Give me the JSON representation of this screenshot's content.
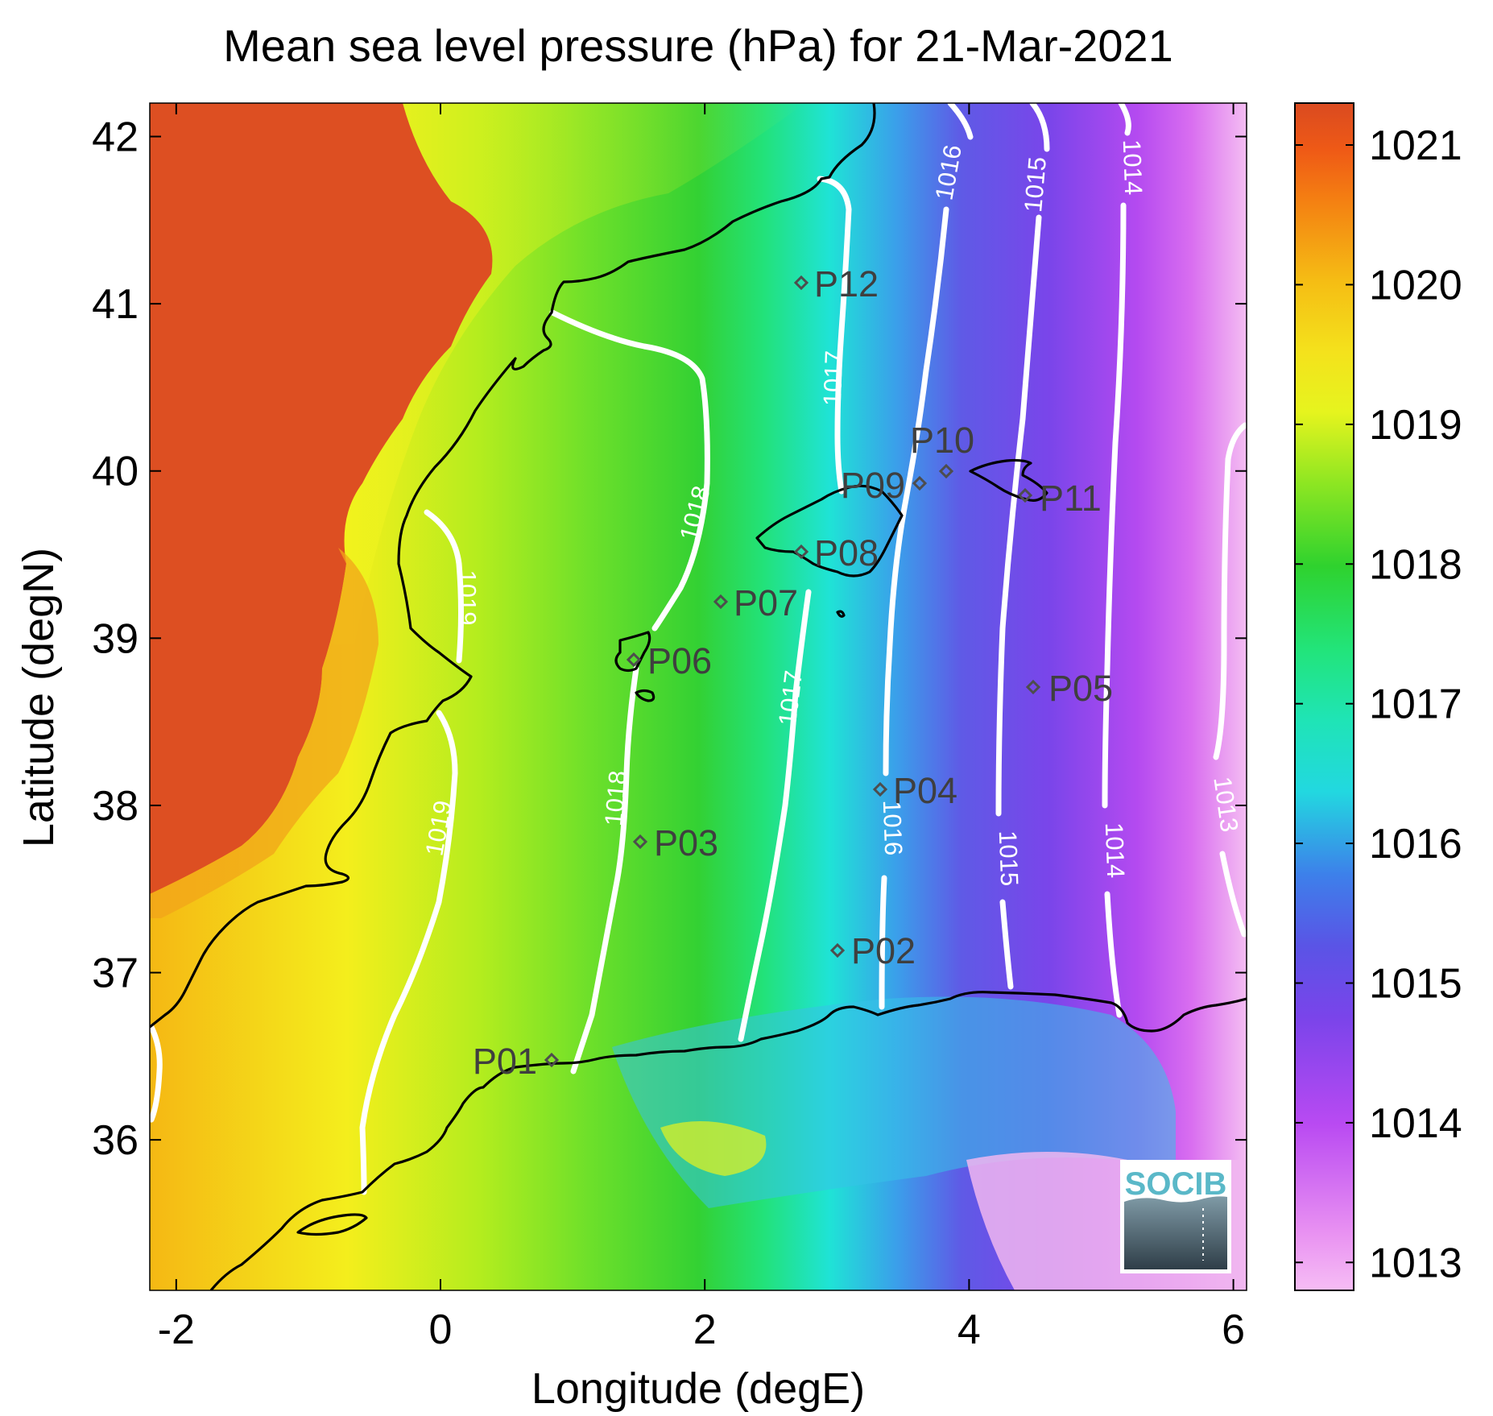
{
  "title": "Mean sea level pressure (hPa) for 21-Mar-2021",
  "xlabel": "Longitude (degE)",
  "ylabel": "Latitude (degN)",
  "xlim": [
    -2.2,
    6.1
  ],
  "ylim": [
    35.1,
    42.2
  ],
  "x_ticks": [
    "-2",
    "0",
    "2",
    "4",
    "6"
  ],
  "x_tick_values": [
    -2,
    0,
    2,
    4,
    6
  ],
  "y_ticks": [
    "36",
    "37",
    "38",
    "39",
    "40",
    "41",
    "42"
  ],
  "y_tick_values": [
    36,
    37,
    38,
    39,
    40,
    41,
    42
  ],
  "colorbar": {
    "range": [
      1012.8,
      1021.3
    ],
    "tick_values": [
      1013,
      1014,
      1015,
      1016,
      1017,
      1018,
      1019,
      1020,
      1021
    ],
    "tick_labels": [
      "1013",
      "1014",
      "1015",
      "1016",
      "1017",
      "1018",
      "1019",
      "1020",
      "1021"
    ],
    "colors": [
      "#f6bdf4",
      "#bb44f2",
      "#6b44e6",
      "#3f73e6",
      "#1fdfe0",
      "#22e28e",
      "#30d32e",
      "#b6ee1e",
      "#f4f51c",
      "#f5bd14",
      "#f26a12",
      "#da4a20"
    ]
  },
  "stations": [
    {
      "name": "P01",
      "lon": 0.85,
      "lat": 36.55
    },
    {
      "name": "P02",
      "lon": 3.0,
      "lat": 37.2
    },
    {
      "name": "P03",
      "lon": 1.5,
      "lat": 37.85
    },
    {
      "name": "P04",
      "lon": 3.3,
      "lat": 38.15
    },
    {
      "name": "P05",
      "lon": 4.45,
      "lat": 38.75
    },
    {
      "name": "P06",
      "lon": 1.45,
      "lat": 38.9
    },
    {
      "name": "P07",
      "lon": 2.1,
      "lat": 39.25
    },
    {
      "name": "P08",
      "lon": 2.7,
      "lat": 39.55
    },
    {
      "name": "P09",
      "lon": 3.6,
      "lat": 39.95
    },
    {
      "name": "P10",
      "lon": 3.8,
      "lat": 40.05
    },
    {
      "name": "P11",
      "lon": 4.4,
      "lat": 39.85
    },
    {
      "name": "P12",
      "lon": 2.7,
      "lat": 41.1
    }
  ],
  "contour_labels": [
    "1019",
    "1019",
    "1018",
    "1018",
    "1017",
    "1017",
    "1016",
    "1016",
    "1015",
    "1015",
    "1014",
    "1014",
    "1013"
  ],
  "logo_text": "SOCIB",
  "chart_data": {
    "type": "heatmap",
    "title": "Mean sea level pressure (hPa) for 21-Mar-2021",
    "xlabel": "Longitude (degE)",
    "ylabel": "Latitude (degN)",
    "xlim": [
      -2.2,
      6.1
    ],
    "ylim": [
      35.1,
      42.2
    ],
    "value_unit": "hPa",
    "value_range": [
      1012.8,
      1021.3
    ],
    "contour_levels": [
      1013,
      1014,
      1015,
      1016,
      1017,
      1018,
      1019
    ],
    "stations": [
      "P01",
      "P02",
      "P03",
      "P04",
      "P05",
      "P06",
      "P07",
      "P08",
      "P09",
      "P10",
      "P11",
      "P12"
    ]
  }
}
